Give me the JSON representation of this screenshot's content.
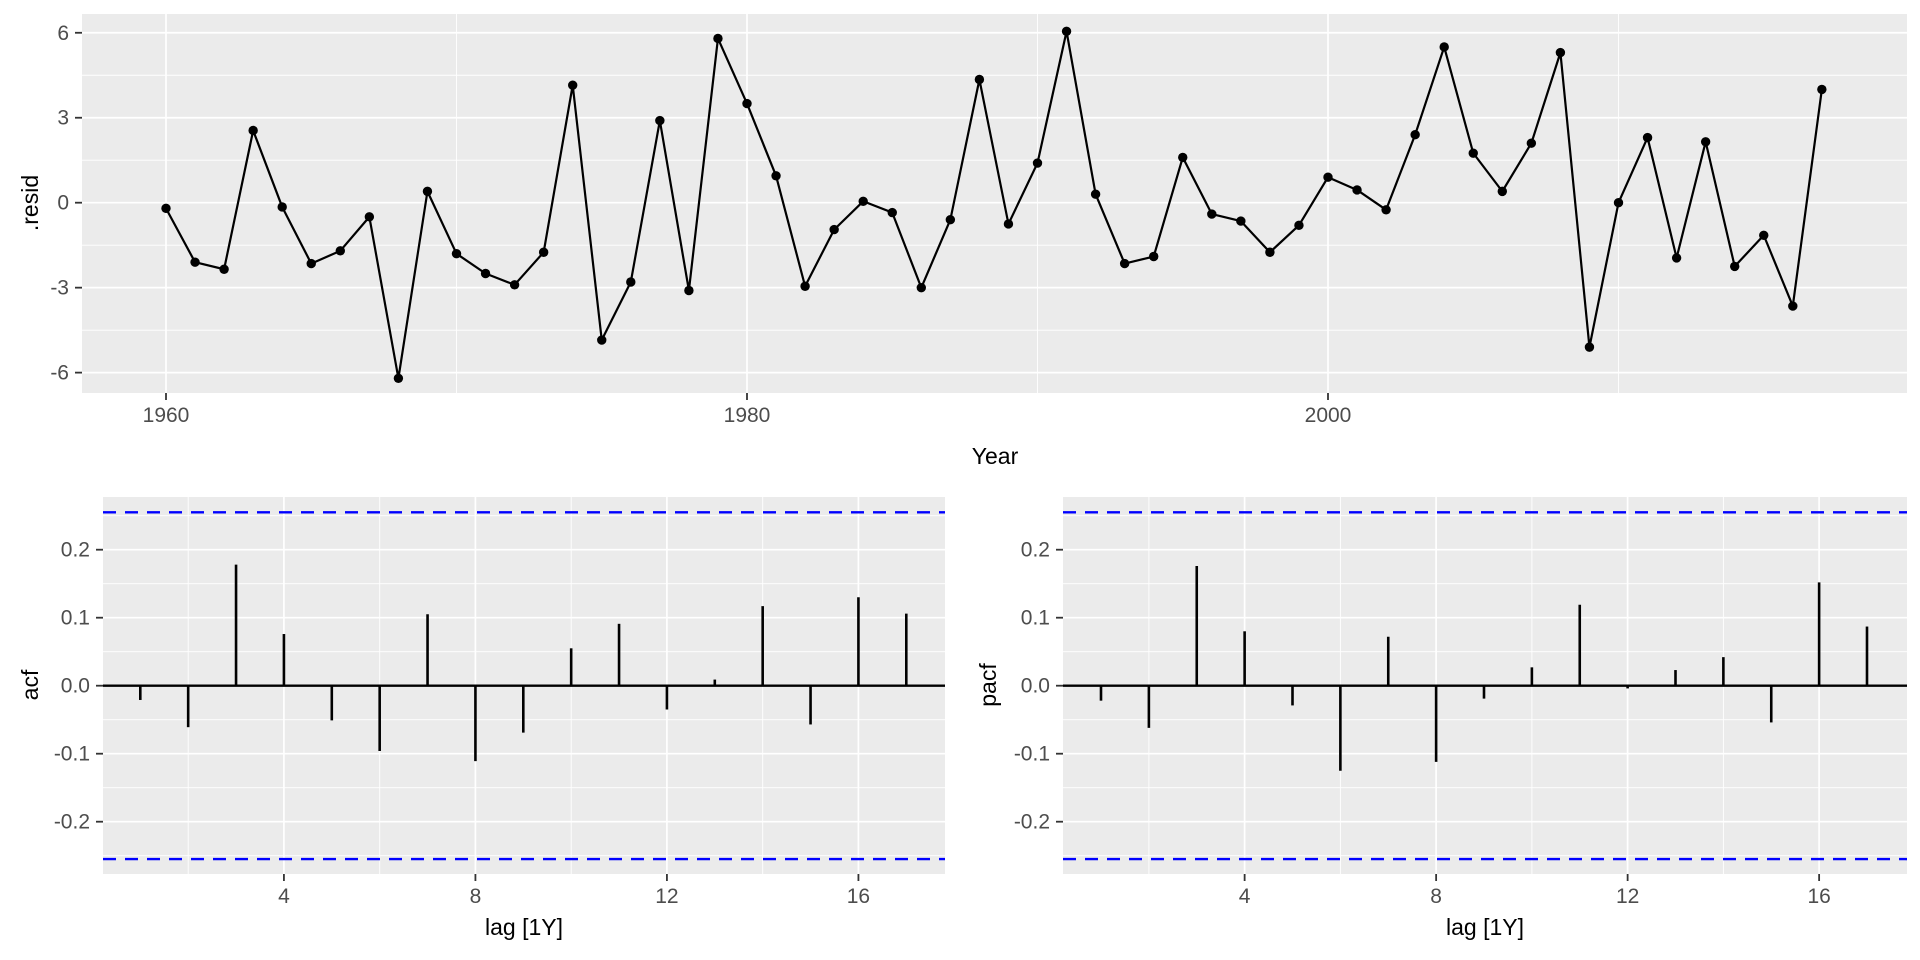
{
  "chart_data": [
    {
      "id": "residuals",
      "type": "line",
      "title": "",
      "xlabel": "Year",
      "ylabel": ".resid",
      "x": [
        1960,
        1961,
        1962,
        1963,
        1964,
        1965,
        1966,
        1967,
        1968,
        1969,
        1970,
        1971,
        1972,
        1973,
        1974,
        1975,
        1976,
        1977,
        1978,
        1979,
        1980,
        1981,
        1982,
        1983,
        1984,
        1985,
        1986,
        1987,
        1988,
        1989,
        1990,
        1991,
        1992,
        1993,
        1994,
        1995,
        1996,
        1997,
        1998,
        1999,
        2000,
        2001,
        2002,
        2003,
        2004,
        2005,
        2006,
        2007,
        2008,
        2009,
        2010,
        2011,
        2012,
        2013,
        2014,
        2015,
        2016,
        2017
      ],
      "values": [
        -0.2,
        -2.1,
        -2.35,
        2.55,
        -0.15,
        -2.15,
        -1.7,
        -0.5,
        -6.2,
        0.4,
        -1.8,
        -2.5,
        -2.9,
        -1.75,
        4.15,
        -4.85,
        -2.8,
        2.9,
        -3.1,
        5.8,
        3.5,
        0.95,
        -2.95,
        -0.95,
        0.05,
        -0.35,
        -3.0,
        -0.6,
        4.35,
        -0.75,
        1.4,
        6.05,
        0.3,
        -2.15,
        -1.9,
        1.6,
        -0.4,
        -0.65,
        -1.75,
        -0.8,
        0.9,
        0.45,
        -0.25,
        2.4,
        5.5,
        1.75,
        0.4,
        2.1,
        5.3,
        -5.1,
        0.0,
        2.3,
        -1.95,
        2.15,
        -2.25,
        -1.15,
        -3.65,
        4.0
      ],
      "xticks": [
        "1960",
        "1980",
        "2000"
      ],
      "xtick_values": [
        1960,
        1980,
        2000
      ],
      "yticks": [
        "6",
        "3",
        "0",
        "-3",
        "-6"
      ],
      "ytick_values": [
        6,
        3,
        0,
        -3,
        -6
      ],
      "xlim": [
        1957.1,
        2019.9
      ],
      "ylim": [
        -6.7,
        6.7
      ],
      "grid": true,
      "legend": false
    },
    {
      "id": "acf",
      "type": "bar",
      "title": "",
      "xlabel": "lag [1Y]",
      "ylabel": "acf",
      "lags": [
        1,
        2,
        3,
        4,
        5,
        6,
        7,
        8,
        9,
        10,
        11,
        12,
        13,
        14,
        15,
        16,
        17
      ],
      "values": [
        -0.021,
        -0.061,
        0.178,
        0.076,
        -0.051,
        -0.096,
        0.105,
        -0.111,
        -0.069,
        0.055,
        0.091,
        -0.035,
        0.009,
        0.117,
        -0.057,
        0.13,
        0.106
      ],
      "conf_bound_upper": 0.255,
      "conf_bound_lower": -0.255,
      "xticks": [
        "4",
        "8",
        "12",
        "16"
      ],
      "xtick_values": [
        4,
        8,
        12,
        16
      ],
      "yticks": [
        "0.2",
        "0.1",
        "0.0",
        "-0.1",
        "-0.2"
      ],
      "ytick_values": [
        0.2,
        0.1,
        0.0,
        -0.1,
        -0.2
      ],
      "xlim": [
        0.2,
        17.8
      ],
      "ylim": [
        -0.28,
        0.28
      ],
      "grid": true,
      "legend": false
    },
    {
      "id": "pacf",
      "type": "bar",
      "title": "",
      "xlabel": "lag [1Y]",
      "ylabel": "pacf",
      "lags": [
        1,
        2,
        3,
        4,
        5,
        6,
        7,
        8,
        9,
        10,
        11,
        12,
        13,
        14,
        15,
        16,
        17
      ],
      "values": [
        -0.022,
        -0.062,
        0.176,
        0.08,
        -0.029,
        -0.125,
        0.072,
        -0.112,
        -0.019,
        0.027,
        0.119,
        -0.004,
        0.023,
        0.042,
        -0.054,
        0.152,
        0.087
      ],
      "conf_bound_upper": 0.255,
      "conf_bound_lower": -0.255,
      "xticks": [
        "4",
        "8",
        "12",
        "16"
      ],
      "xtick_values": [
        4,
        8,
        12,
        16
      ],
      "yticks": [
        "0.2",
        "0.1",
        "0.0",
        "-0.1",
        "-0.2"
      ],
      "ytick_values": [
        0.2,
        0.1,
        0.0,
        -0.1,
        -0.2
      ],
      "xlim": [
        0.2,
        17.8
      ],
      "ylim": [
        -0.28,
        0.28
      ],
      "grid": true,
      "legend": false
    }
  ],
  "style": {
    "panel_background": "#EBEBEB",
    "grid_color": "#FFFFFF",
    "series_color": "#000000",
    "confidence_line_color": "#0000FF",
    "tick_label_color": "#4D4D4D",
    "tick_mark_color": "#333333",
    "axis_title_color": "#000000"
  }
}
